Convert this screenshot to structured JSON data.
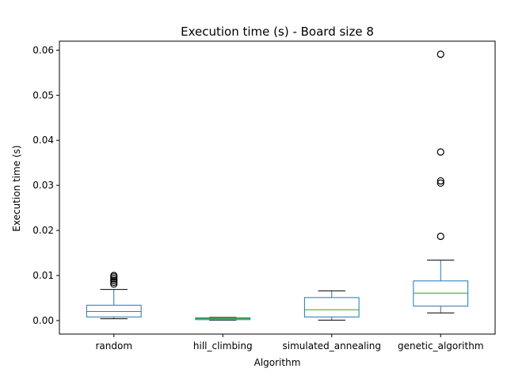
{
  "chart_data": {
    "type": "box",
    "title": "Execution time (s) - Board size 8",
    "xlabel": "Algorithm",
    "ylabel": "Execution time (s)",
    "categories": [
      "random",
      "hill_climbing",
      "simulated_annealing",
      "genetic_algorithm"
    ],
    "ylim": [
      -0.003,
      0.062
    ],
    "yticks": [
      0.0,
      0.01,
      0.02,
      0.03,
      0.04,
      0.05,
      0.06
    ],
    "ytick_labels": [
      "0.00",
      "0.01",
      "0.02",
      "0.03",
      "0.04",
      "0.05",
      "0.06"
    ],
    "boxes": [
      {
        "category": "random",
        "whisker_low": 0.0004,
        "q1": 0.0008,
        "median": 0.002,
        "q3": 0.0034,
        "whisker_high": 0.0069,
        "outliers": [
          0.0081,
          0.0085,
          0.0089,
          0.0093,
          0.0097,
          0.01
        ]
      },
      {
        "category": "hill_climbing",
        "whisker_low": 0.0001,
        "q1": 0.0002,
        "median": 0.0004,
        "q3": 0.0006,
        "whisker_high": 0.0007,
        "outliers": []
      },
      {
        "category": "simulated_annealing",
        "whisker_low": 0.0001,
        "q1": 0.0008,
        "median": 0.0024,
        "q3": 0.0051,
        "whisker_high": 0.0066,
        "outliers": []
      },
      {
        "category": "genetic_algorithm",
        "whisker_low": 0.0017,
        "q1": 0.0032,
        "median": 0.0061,
        "q3": 0.0088,
        "whisker_high": 0.0134,
        "outliers": [
          0.0187,
          0.0305,
          0.031,
          0.0374,
          0.0591
        ]
      }
    ],
    "colors": {
      "box": "#1f77b4",
      "median": "#2ca02c",
      "whisker": "#000000",
      "outlier": "#000000"
    },
    "grid": false,
    "legend": "none"
  }
}
